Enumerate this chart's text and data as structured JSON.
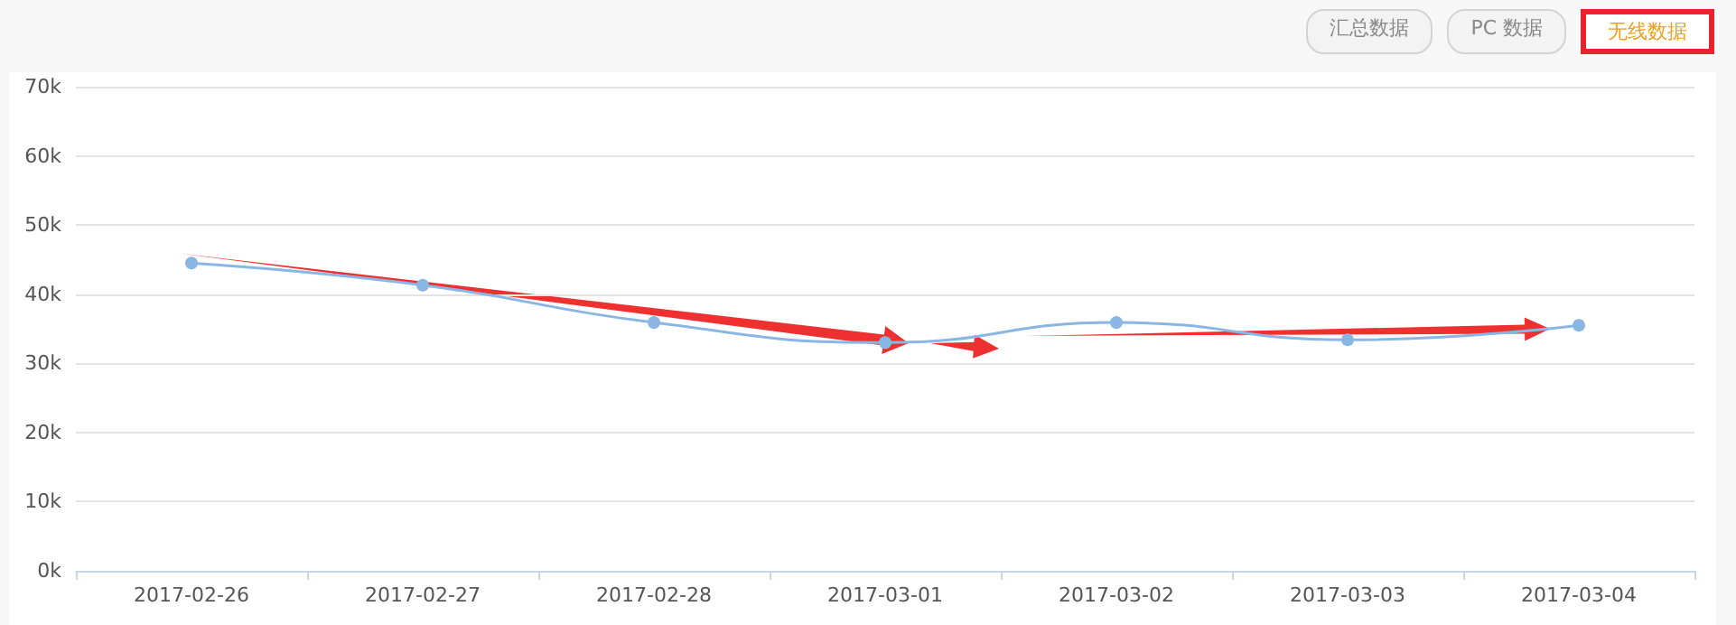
{
  "chart_data": {
    "type": "line",
    "categories": [
      "2017-02-26",
      "2017-02-27",
      "2017-02-28",
      "2017-03-01",
      "2017-03-02",
      "2017-03-03",
      "2017-03-04"
    ],
    "series": [
      {
        "color": "#8ab6e4",
        "values": [
          44500,
          41300,
          35900,
          33000,
          35900,
          33400,
          35500
        ]
      }
    ],
    "ylim": [
      0,
      70000
    ],
    "yticks": [
      {
        "value": 0,
        "label": "0k"
      },
      {
        "value": 10000,
        "label": "10k"
      },
      {
        "value": 20000,
        "label": "20k"
      },
      {
        "value": 30000,
        "label": "30k"
      },
      {
        "value": 40000,
        "label": "40k"
      },
      {
        "value": 50000,
        "label": "50k"
      },
      {
        "value": 60000,
        "label": "60k"
      },
      {
        "value": 70000,
        "label": "70k"
      }
    ],
    "grid": "y",
    "marker": "circle",
    "line_style": "solid",
    "annotations": [
      "汇总数据",
      "PC 数据",
      "无线数据"
    ]
  }
}
